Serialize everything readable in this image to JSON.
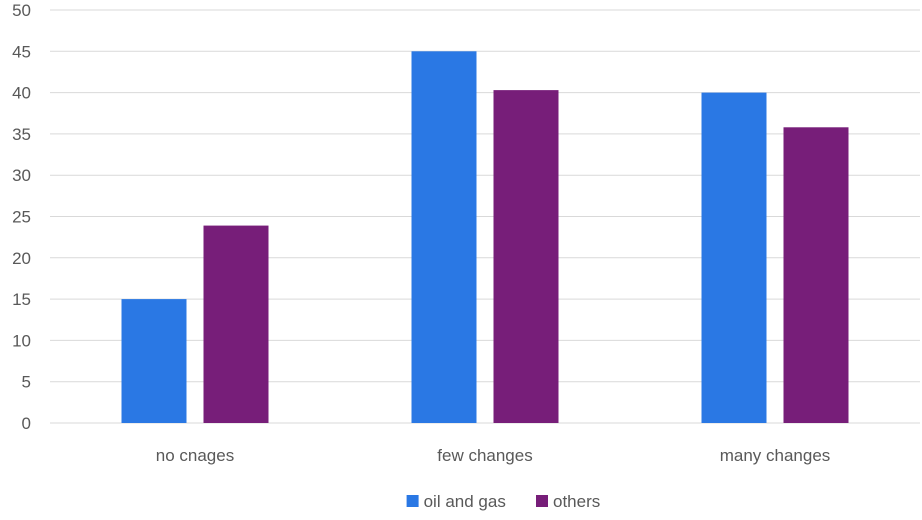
{
  "chart_data": {
    "type": "bar",
    "categories": [
      "no cnages",
      "few changes",
      "many changes"
    ],
    "series": [
      {
        "name": "oil and gas",
        "values": [
          15,
          45,
          40
        ],
        "color": "#2A78E4"
      },
      {
        "name": "others",
        "values": [
          23.9,
          40.3,
          35.8
        ],
        "color": "#771E79"
      }
    ],
    "ylim": [
      0,
      50
    ],
    "yticks": [
      0,
      5,
      10,
      15,
      20,
      25,
      30,
      35,
      40,
      45,
      50
    ],
    "grid": true,
    "legend_position": "bottom",
    "title": "",
    "xlabel": "",
    "ylabel": ""
  }
}
